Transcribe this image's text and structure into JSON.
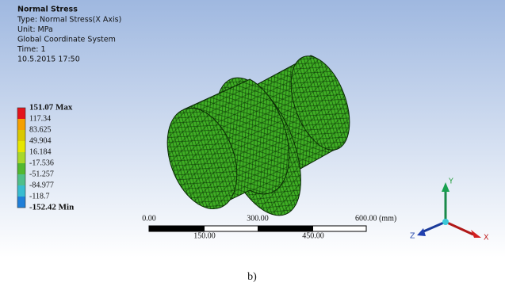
{
  "header": {
    "title": "Normal Stress",
    "lines": [
      "Type: Normal Stress(X Axis)",
      "Unit: MPa",
      "Global Coordinate System",
      "Time: 1",
      "10.5.2015 17:50"
    ]
  },
  "legend": {
    "labels": [
      "151.07 Max",
      "117.34",
      "83.625",
      "49.904",
      "16.184",
      "-17.536",
      "-51.257",
      "-84.977",
      "-118.7",
      "-152.42 Min"
    ],
    "colors": [
      "#e3141b",
      "#f5a000",
      "#d9c800",
      "#e6e600",
      "#a8d82a",
      "#52b830",
      "#4fbf8a",
      "#38bcd0",
      "#1f7fd8"
    ]
  },
  "scale_bar": {
    "top_labels": [
      "0.00",
      "300.00",
      "600.00 (mm)"
    ],
    "bottom_labels": [
      "150.00",
      "450.00"
    ]
  },
  "triad": {
    "y": "Y",
    "z": "Z",
    "x": "X"
  },
  "caption": "b)"
}
